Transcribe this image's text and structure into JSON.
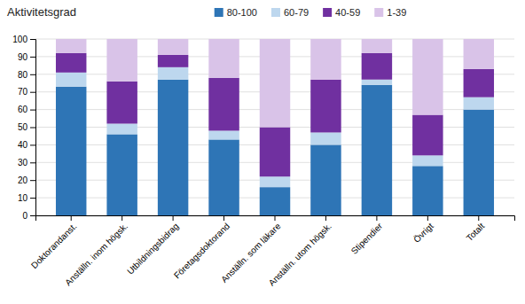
{
  "chart_data": {
    "type": "bar",
    "stacked": true,
    "title": "Aktivitetsgrad",
    "categories": [
      "Doktorandanst.",
      "Anställn. inom högsk.",
      "Utbildningsbidrag",
      "Företagsdoktorand",
      "Anställn. som läkare",
      "Anställn. utom högsk.",
      "Stipendier",
      "Övrigt",
      "Totalt"
    ],
    "series": [
      {
        "name": "80-100",
        "color": "#2E75B6",
        "values": [
          73,
          46,
          77,
          43,
          16,
          40,
          74,
          28,
          60
        ]
      },
      {
        "name": "60-79",
        "color": "#BDD7EE",
        "values": [
          8,
          6,
          7,
          5,
          6,
          7,
          3,
          6,
          7
        ]
      },
      {
        "name": "40-59",
        "color": "#7030A0",
        "values": [
          11,
          24,
          7,
          30,
          28,
          30,
          15,
          23,
          16
        ]
      },
      {
        "name": "1-39",
        "color": "#D9C3E8",
        "values": [
          8,
          24,
          9,
          22,
          50,
          23,
          8,
          43,
          17
        ]
      }
    ],
    "ylim": [
      0,
      100
    ],
    "yticks": [
      0,
      10,
      20,
      30,
      40,
      50,
      60,
      70,
      80,
      90,
      100
    ],
    "grid": true,
    "legend": "top"
  }
}
